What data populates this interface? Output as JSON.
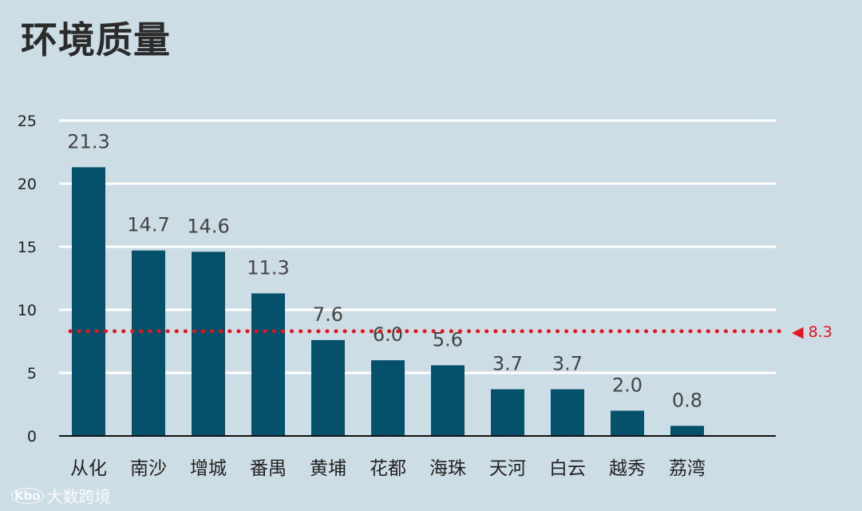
{
  "title": "环境质量",
  "watermark": {
    "logo": "Kbo",
    "text": "大数跨境"
  },
  "chart_data": {
    "type": "bar",
    "categories": [
      "从化",
      "南沙",
      "增城",
      "番禺",
      "黄埔",
      "花都",
      "海珠",
      "天河",
      "白云",
      "越秀",
      "荔湾"
    ],
    "values": [
      21.3,
      14.7,
      14.6,
      11.3,
      7.6,
      6.0,
      5.6,
      3.7,
      3.7,
      2.0,
      0.8
    ],
    "value_labels": [
      "21.3",
      "14.7",
      "14.6",
      "11.3",
      "7.6",
      "6.0",
      "5.6",
      "3.7",
      "3.7",
      "2.0",
      "0.8"
    ],
    "ylim": [
      0,
      25
    ],
    "yticks": [
      0,
      5,
      10,
      15,
      20,
      25
    ],
    "ytick_labels": [
      "0",
      "5",
      "10",
      "15",
      "20",
      "25"
    ],
    "grid": true,
    "bar_color": "#05506b",
    "reference_line": {
      "value": 8.3,
      "label": "◀ 8.3",
      "color": "#e8141b",
      "style": "dotted"
    },
    "xlabel": "",
    "ylabel": ""
  }
}
